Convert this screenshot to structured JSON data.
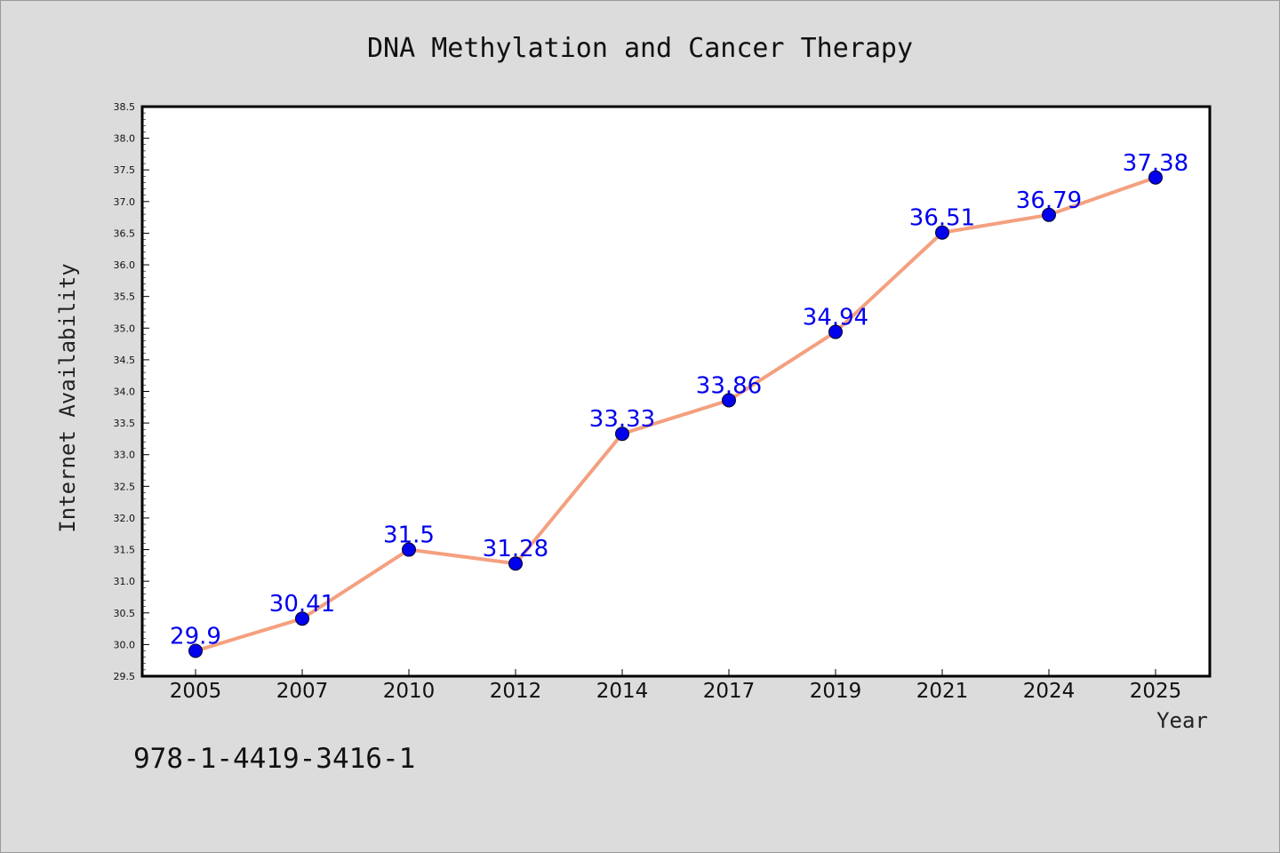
{
  "chart_data": {
    "type": "line",
    "title": "DNA Methylation and Cancer Therapy",
    "xlabel": "Year",
    "ylabel": "Internet Availability",
    "categories": [
      "2005",
      "2007",
      "2010",
      "2012",
      "2014",
      "2017",
      "2019",
      "2021",
      "2024",
      "2025"
    ],
    "series": [
      {
        "values": [
          29.9,
          30.41,
          31.5,
          31.28,
          33.33,
          33.86,
          34.94,
          36.51,
          36.79,
          37.38
        ],
        "data_labels": [
          "29.9",
          "30.41",
          "31.5",
          "31.28",
          "33.33",
          "33.86",
          "34.94",
          "36.51",
          "36.79",
          "37.38"
        ]
      }
    ],
    "ylim": [
      29.5,
      38.5
    ],
    "yticks": [
      "29.5",
      "30.0",
      "30.5",
      "31.0",
      "31.5",
      "32.0",
      "32.5",
      "33.0",
      "33.5",
      "34.0",
      "34.5",
      "35.0",
      "35.5",
      "36.0",
      "36.5",
      "37.0",
      "37.5",
      "38.0",
      "38.5"
    ],
    "grid": false,
    "colors": {
      "line": "#f4a07f",
      "marker": "#0000ee",
      "data_label": "#0000ee",
      "plot_background": "#ffffff",
      "figure_background": "#dcdcdc"
    }
  },
  "footnote": "978-1-4419-3416-1"
}
